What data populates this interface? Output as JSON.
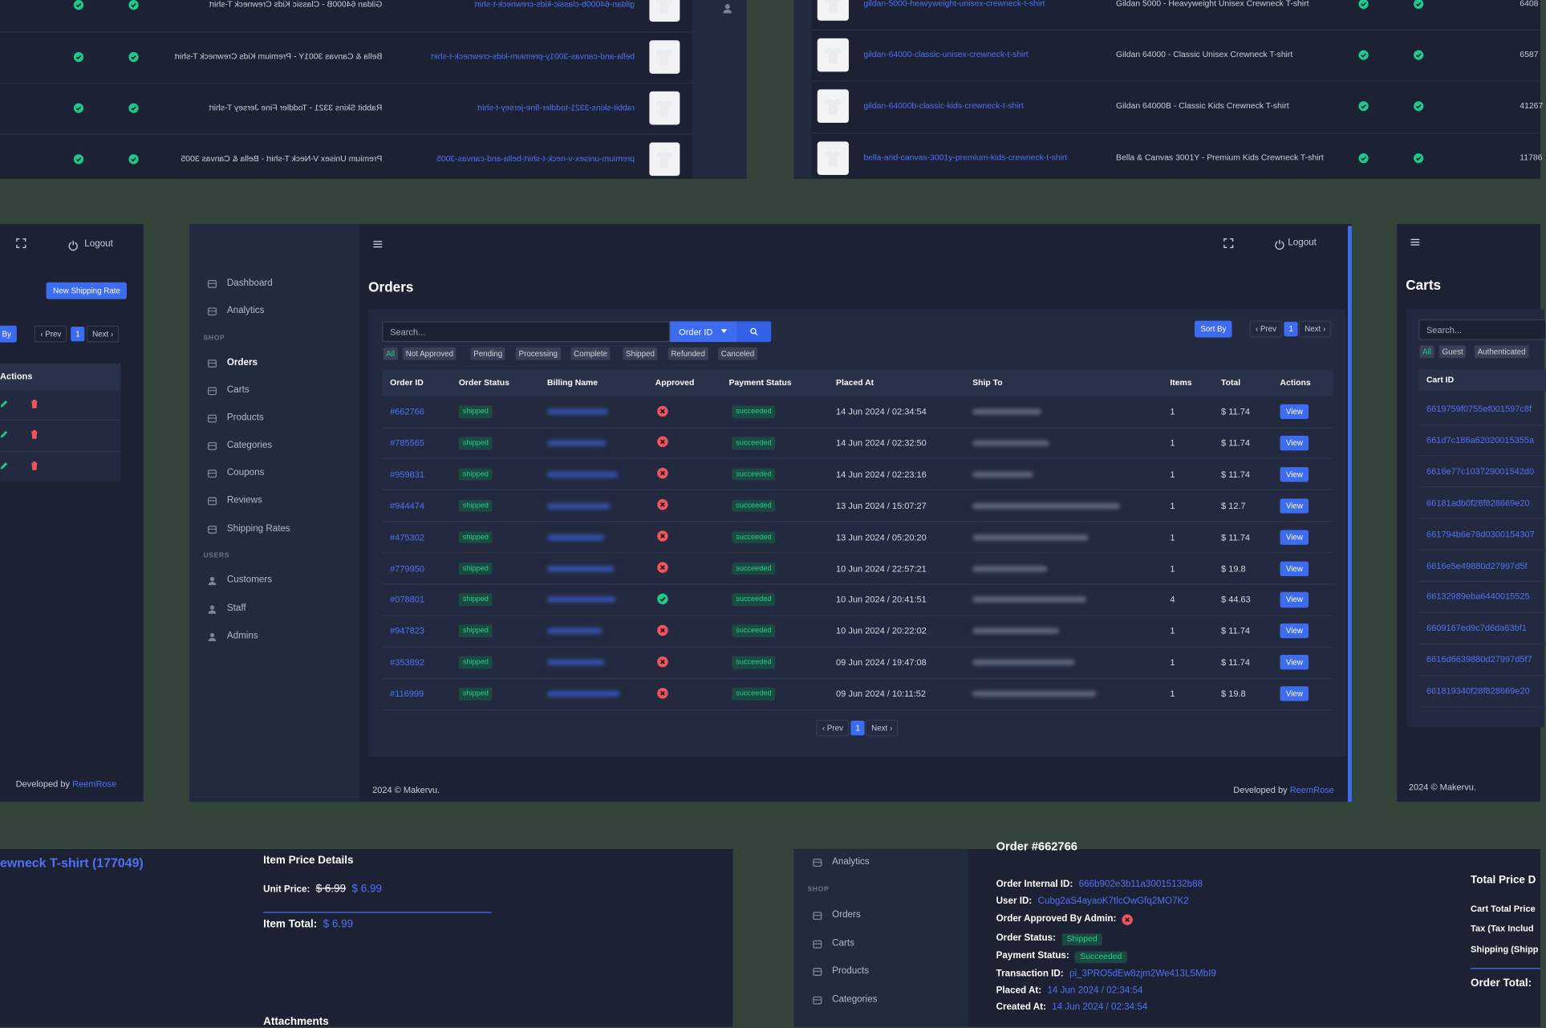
{
  "top_left_products": {
    "rows": [
      {
        "slug": "gildan-64000b-classic-kids-crewneck-t-shirt",
        "name": "Gildan 64000B - Classic Kids Crewneck T-shirt"
      },
      {
        "slug": "bella-and-canvas-3001y-premium-kids-crewneck-t-shirt",
        "name": "Bella & Canvas 3001Y - Premium Kids Crewneck T-shirt"
      },
      {
        "slug": "rabbit-skins-3321-toddler-fine-jersey-t-shirt",
        "name": "Rabbit Skins 3321 - Toddler Fine Jersey T-shirt"
      },
      {
        "slug": "premium-unisex-v-neck-t-shirt-bella-and-canvas-3005",
        "name": "Premium Unisex V-Neck T-shirt - Bella & Canvas 3005"
      }
    ]
  },
  "top_right_products": {
    "rows": [
      {
        "slug": "gildan-5000-heavyweight-unisex-crewneck-t-shirt",
        "name": "Gildan 5000 - Heavyweight Unisex Crewneck T-shirt",
        "count": "6408"
      },
      {
        "slug": "gildan-64000-classic-unisex-crewneck-t-shirt",
        "name": "Gildan 64000 - Classic Unisex Crewneck T-shirt",
        "count": "6587"
      },
      {
        "slug": "gildan-64000b-classic-kids-crewneck-t-shirt",
        "name": "Gildan 64000B - Classic Kids Crewneck T-shirt",
        "count": "41267"
      },
      {
        "slug": "bella-and-canvas-3001y-premium-kids-crewneck-t-shirt",
        "name": "Bella & Canvas 3001Y - Premium Kids Crewneck T-shirt",
        "count": "11786"
      }
    ]
  },
  "shipping_panel": {
    "logout": "Logout",
    "new_button": "New Shipping Rate",
    "sort": "By",
    "prev": "‹ Prev",
    "page": "1",
    "next": "Next ›",
    "actions_header": "Actions",
    "developed_by": "Developed by",
    "author": "ReemRose"
  },
  "orders_page": {
    "sidebar": [
      {
        "label": "Dashboard"
      },
      {
        "label": "Analytics"
      },
      {
        "heading": "SHOP"
      },
      {
        "label": "Orders"
      },
      {
        "label": "Carts"
      },
      {
        "label": "Products"
      },
      {
        "label": "Categories"
      },
      {
        "label": "Coupons"
      },
      {
        "label": "Reviews"
      },
      {
        "label": "Shipping Rates"
      },
      {
        "heading": "USERS"
      },
      {
        "label": "Customers"
      },
      {
        "label": "Staff"
      },
      {
        "label": "Admins"
      }
    ],
    "logout": "Logout",
    "title": "Orders",
    "search_placeholder": "Search...",
    "search_field": "Order ID",
    "sort": "Sort By",
    "prev": "‹ Prev",
    "page": "1",
    "next": "Next ›",
    "filters": [
      "All",
      "Not Approved",
      "Pending",
      "Processing",
      "Complete",
      "Shipped",
      "Refunded",
      "Canceled"
    ],
    "columns": [
      "Order ID",
      "Order Status",
      "Billing Name",
      "Approved",
      "Payment Status",
      "Placed At",
      "Ship To",
      "Items",
      "Total",
      "Actions"
    ],
    "rows": [
      {
        "id": "#662766",
        "status": "shipped",
        "approved": false,
        "payment": "succeeded",
        "placed": "14 Jun 2024 / 02:34:54",
        "items": 1,
        "total": "$ 11.74",
        "action": "View"
      },
      {
        "id": "#785565",
        "status": "shipped",
        "approved": false,
        "payment": "succeeded",
        "placed": "14 Jun 2024 / 02:32:50",
        "items": 1,
        "total": "$ 11.74",
        "action": "View"
      },
      {
        "id": "#959831",
        "status": "shipped",
        "approved": false,
        "payment": "succeeded",
        "placed": "14 Jun 2024 / 02:23:16",
        "items": 1,
        "total": "$ 11.74",
        "action": "View"
      },
      {
        "id": "#944474",
        "status": "shipped",
        "approved": false,
        "payment": "succeeded",
        "placed": "13 Jun 2024 / 15:07:27",
        "items": 1,
        "total": "$ 12.7",
        "action": "View"
      },
      {
        "id": "#475302",
        "status": "shipped",
        "approved": false,
        "payment": "succeeded",
        "placed": "13 Jun 2024 / 05:20:20",
        "items": 1,
        "total": "$ 11.74",
        "action": "View"
      },
      {
        "id": "#779950",
        "status": "shipped",
        "approved": false,
        "payment": "succeeded",
        "placed": "10 Jun 2024 / 22:57:21",
        "items": 1,
        "total": "$ 19.8",
        "action": "View"
      },
      {
        "id": "#078801",
        "status": "shipped",
        "approved": true,
        "payment": "succeeded",
        "placed": "10 Jun 2024 / 20:41:51",
        "items": 4,
        "total": "$ 44.63",
        "action": "View"
      },
      {
        "id": "#947823",
        "status": "shipped",
        "approved": false,
        "payment": "succeeded",
        "placed": "10 Jun 2024 / 20:22:02",
        "items": 1,
        "total": "$ 11.74",
        "action": "View"
      },
      {
        "id": "#353892",
        "status": "shipped",
        "approved": false,
        "payment": "succeeded",
        "placed": "09 Jun 2024 / 19:47:08",
        "items": 1,
        "total": "$ 11.74",
        "action": "View"
      },
      {
        "id": "#116999",
        "status": "shipped",
        "approved": false,
        "payment": "succeeded",
        "placed": "09 Jun 2024 / 10:11:52",
        "items": 1,
        "total": "$ 19.8",
        "action": "View"
      }
    ],
    "bottom_prev": "‹ Prev",
    "bottom_page": "1",
    "bottom_next": "Next ›",
    "copyright": "2024 © Makervu.",
    "developed_by": "Developed by",
    "author": "ReemRose"
  },
  "carts_panel": {
    "title": "Carts",
    "search_placeholder": "Search...",
    "filters": [
      "All",
      "Guest",
      "Authenticated"
    ],
    "column": "Cart ID",
    "ids": [
      "6619759f0755ef001597c8f",
      "661d7c186a62020015355a",
      "6616e77c103729001542d0",
      "66181adb0f28f828669e20",
      "661794b6e78d0300154307",
      "6616e5e49880d27997d5f",
      "66132989eba6440015525",
      "6609167ed9c7d6da63bf1",
      "6616d6639880d27997d5f7",
      "661819340f28f828669e20"
    ],
    "copyright": "2024 © Makervu."
  },
  "item_panel": {
    "product": "ewneck T-shirt (177049)",
    "heading": "Item Price Details",
    "unit_label": "Unit Price:",
    "old_price": "$ 6.99",
    "unit_price": "$ 6.99",
    "total_label": "Item Total:",
    "total": "$ 6.99",
    "attachments": "Attachments"
  },
  "order_detail": {
    "sidebar": [
      {
        "label": "Analytics"
      },
      {
        "heading": "SHOP"
      },
      {
        "label": "Orders"
      },
      {
        "label": "Carts"
      },
      {
        "label": "Products"
      },
      {
        "label": "Categories"
      }
    ],
    "title": "Order #662766",
    "fields": [
      {
        "label": "Order Internal ID:",
        "value": "666b902e3b11a30015132b88"
      },
      {
        "label": "User ID:",
        "value": "Cubg2aS4ayaoK7tlcOwGfq2MO7K2"
      },
      {
        "label": "Order Approved By Admin:"
      },
      {
        "label": "Order Status:",
        "badge": "Shipped"
      },
      {
        "label": "Payment Status:",
        "badge": "Succeeded"
      },
      {
        "label": "Transaction ID:",
        "value": "pi_3PRO5dEw8zjm2We413L5MbI9"
      },
      {
        "label": "Placed At:",
        "value": "14 Jun 2024 / 02:34:54"
      },
      {
        "label": "Created At:",
        "value": "14 Jun 2024 / 02:34:54"
      }
    ]
  },
  "price_panel": {
    "heading": "Total Price D",
    "lines": [
      "Cart Total Price",
      "Tax (Tax Includ",
      "Shipping (Shipp"
    ],
    "total_label": "Order Total:"
  }
}
